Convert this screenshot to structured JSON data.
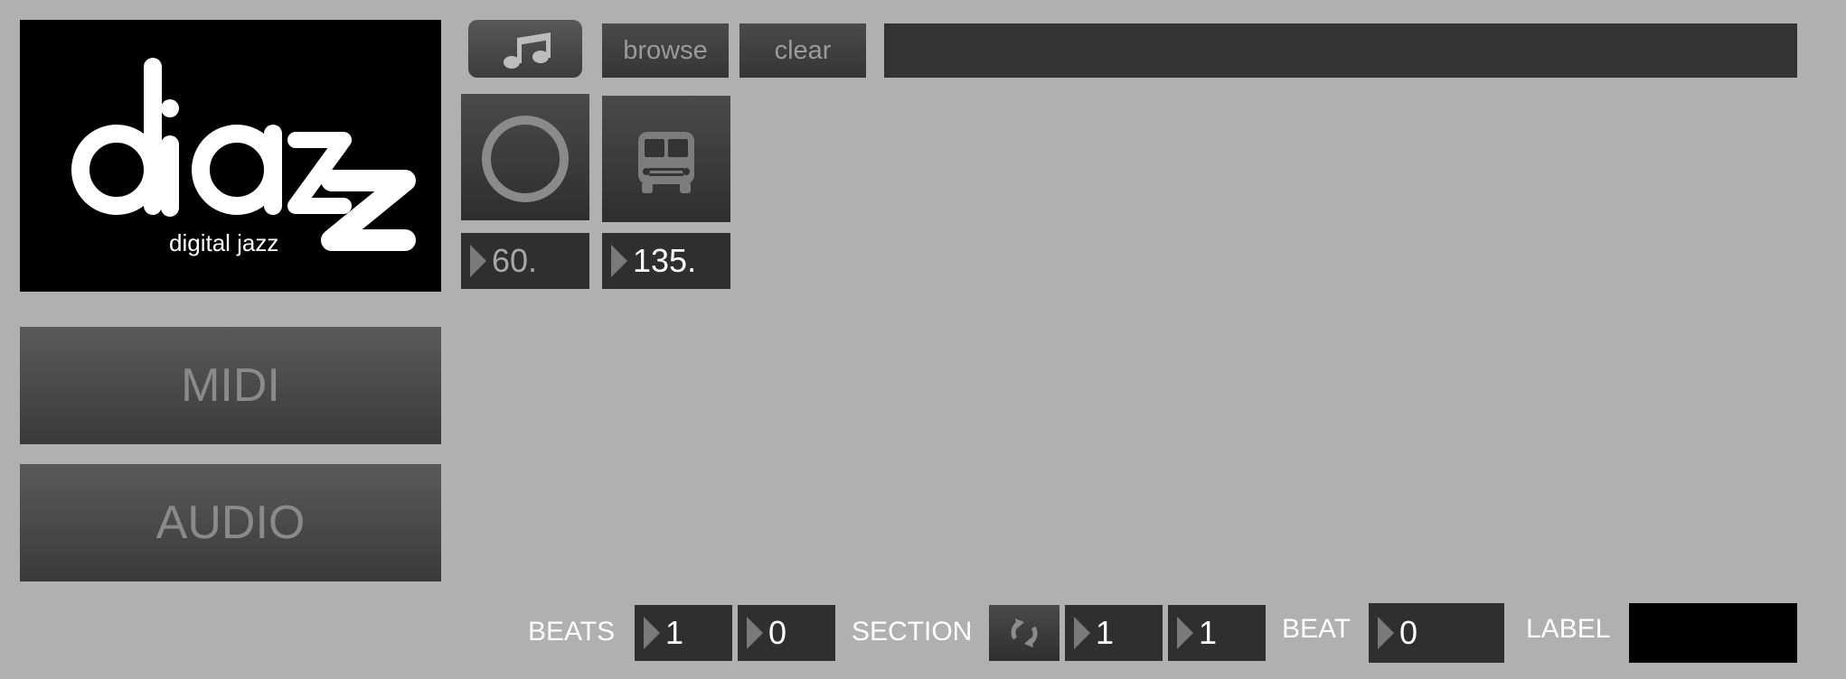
{
  "logo": {
    "brand": "djazz",
    "tagline": "digital jazz"
  },
  "modes": {
    "midi": "MIDI",
    "audio": "AUDIO"
  },
  "file": {
    "browse_label": "browse",
    "clear_label": "clear",
    "path_value": ""
  },
  "tiles": {
    "record_icon": "circle-icon",
    "sync_icon": "bus-icon"
  },
  "numbers": {
    "tempo_a": "60.",
    "tempo_b": "135."
  },
  "bottom": {
    "beats_label": "BEATS",
    "beats_a": "1",
    "beats_b": "0",
    "section_label": "SECTION",
    "section_a": "1",
    "section_b": "1",
    "beat_label": "BEAT",
    "beat_value": "0",
    "label_label": "LABEL",
    "label_value": ""
  },
  "colors": {
    "background": "#b0b0b0",
    "panel_dark": "#2f2f2f",
    "logo_bg": "#000000"
  }
}
